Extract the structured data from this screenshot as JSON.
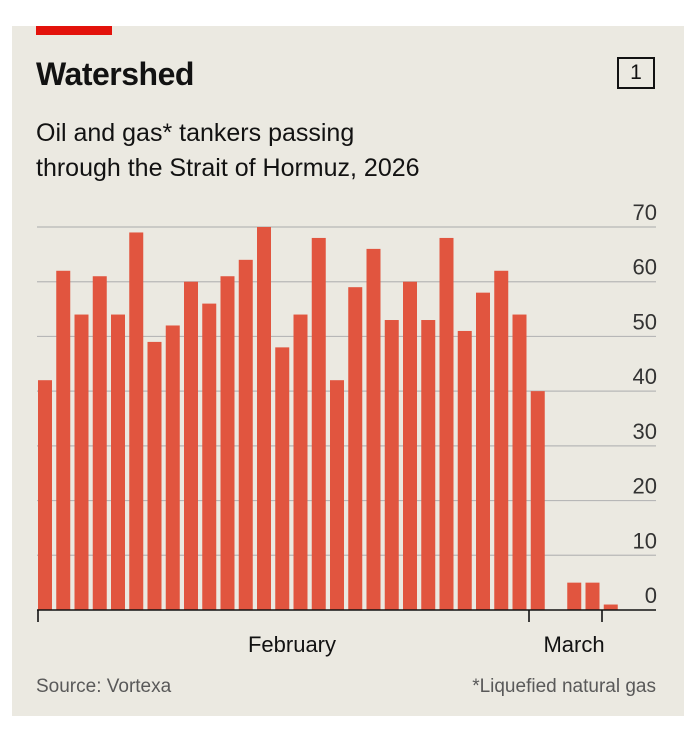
{
  "header": {
    "title": "Watershed",
    "chart_number": "1",
    "subtitle_line1": "Oil and gas* tankers passing",
    "subtitle_line2": "through the Strait of Hormuz, 2026"
  },
  "footer": {
    "source": "Source: Vortexa",
    "footnote": "*Liquefied natural gas"
  },
  "colors": {
    "bar": "#e1553f",
    "accent": "#e3120b",
    "background": "#ebe9e1",
    "grid": "#b7b7b7",
    "text": "#121212"
  },
  "chart_data": {
    "type": "bar",
    "title": "Watershed",
    "subtitle": "Oil and gas* tankers passing through the Strait of Hormuz, 2026",
    "ylim": [
      0,
      70
    ],
    "yticks": [
      0,
      10,
      20,
      30,
      40,
      50,
      60,
      70
    ],
    "y_axis_side": "right",
    "grid": true,
    "x_labels": [
      "February",
      "March"
    ],
    "values": [
      42,
      62,
      54,
      61,
      54,
      69,
      49,
      52,
      60,
      56,
      61,
      64,
      70,
      48,
      54,
      68,
      42,
      59,
      66,
      53,
      60,
      53,
      68,
      51,
      58,
      62,
      54,
      40,
      0,
      5,
      5,
      1
    ]
  }
}
